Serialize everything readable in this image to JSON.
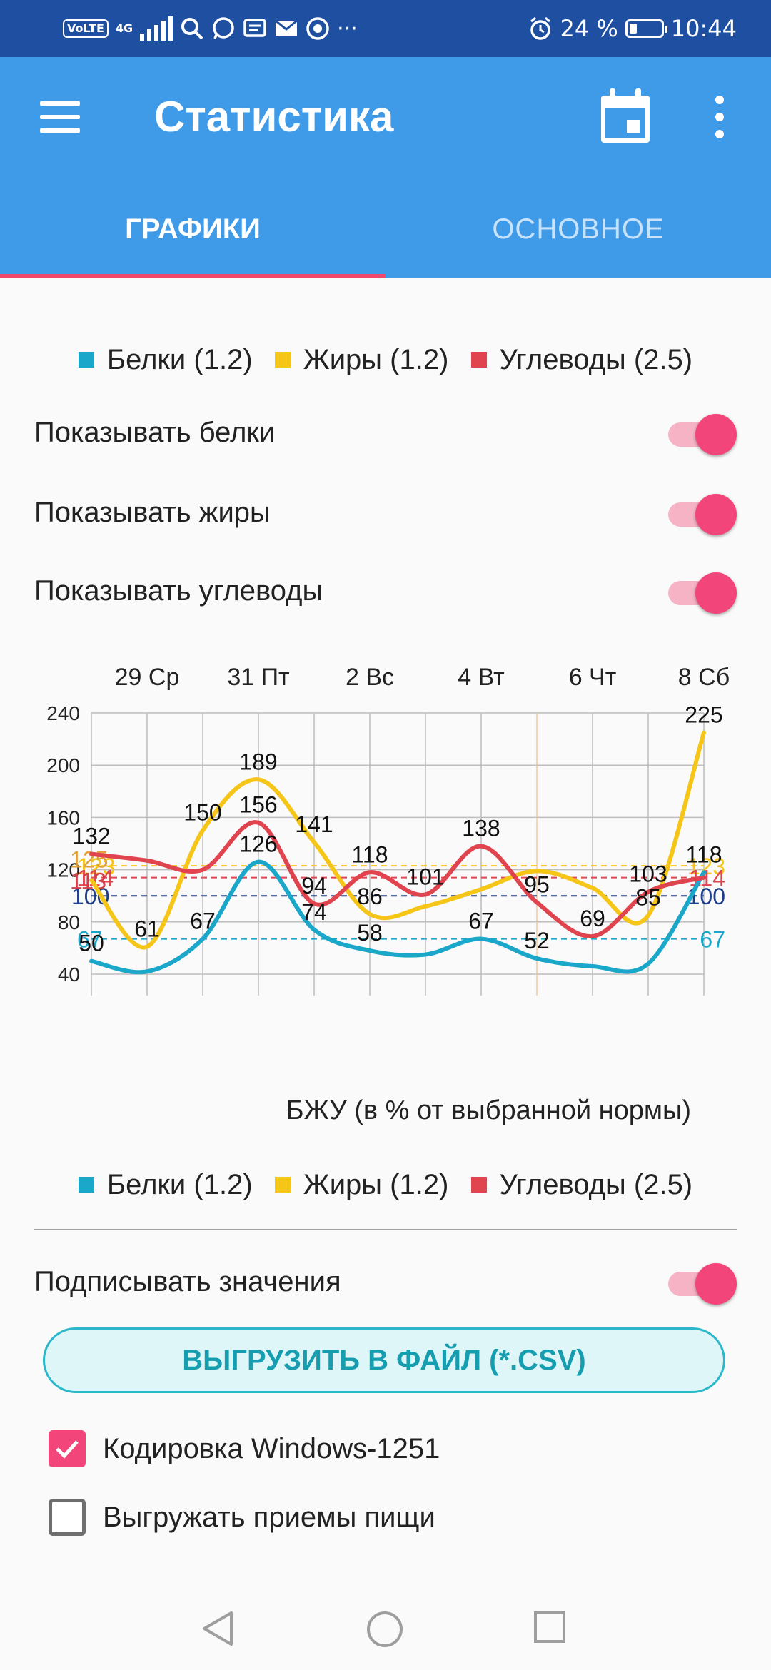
{
  "status_bar": {
    "volte": "VoLTE",
    "network": "4G",
    "dots": "···",
    "battery_percent": "24 %",
    "time": "10:44",
    "icons": [
      "signal-icon",
      "search-icon",
      "whatsapp-icon",
      "message-icon",
      "mail-icon",
      "chrome-icon",
      "alarm-icon",
      "battery-icon"
    ]
  },
  "app_bar": {
    "title": "Статистика",
    "tabs": [
      {
        "label": "ГРАФИКИ",
        "selected": true
      },
      {
        "label": "ОСНОВНОЕ",
        "selected": false
      }
    ]
  },
  "legend_top": [
    {
      "label": "Белки (1.2)",
      "color": "#1aa7c9"
    },
    {
      "label": "Жиры (1.2)",
      "color": "#f5c518"
    },
    {
      "label": "Углеводы (2.5)",
      "color": "#e0444e"
    }
  ],
  "toggles": [
    {
      "label": "Показывать белки",
      "on": true
    },
    {
      "label": "Показывать жиры",
      "on": true
    },
    {
      "label": "Показывать углеводы",
      "on": true
    }
  ],
  "chart_data": {
    "type": "line",
    "title": "",
    "caption": "БЖУ (в % от выбранной нормы)",
    "xlabel": "",
    "ylabel": "",
    "x_ticks": [
      "29 Ср",
      "31 Пт",
      "2 Вс",
      "4 Вт",
      "6 Чт",
      "8 Сб"
    ],
    "y_ticks": [
      40,
      80,
      120,
      160,
      200,
      240
    ],
    "ylim": [
      40,
      240
    ],
    "grid": true,
    "series": [
      {
        "name": "Белки (1.2)",
        "color": "#1aa7c9",
        "points": [
          [
            0,
            50
          ],
          [
            1,
            42
          ],
          [
            2,
            67
          ],
          [
            3,
            126
          ],
          [
            4,
            74
          ],
          [
            5,
            58
          ],
          [
            6,
            55
          ],
          [
            7,
            67
          ],
          [
            8,
            52
          ],
          [
            9,
            46
          ],
          [
            10,
            48
          ],
          [
            11,
            118
          ]
        ],
        "labels": [
          "50",
          "",
          "67",
          "126",
          "74",
          "58",
          "",
          "67",
          "52",
          "",
          "",
          "118"
        ],
        "norm": 67,
        "norm_label": "67"
      },
      {
        "name": "Жиры (1.2)",
        "color": "#f5c518",
        "points": [
          [
            0,
            112
          ],
          [
            1,
            61
          ],
          [
            2,
            150
          ],
          [
            3,
            189
          ],
          [
            4,
            141
          ],
          [
            5,
            86
          ],
          [
            6,
            92
          ],
          [
            7,
            105
          ],
          [
            8,
            119
          ],
          [
            9,
            106
          ],
          [
            10,
            85
          ],
          [
            11,
            225
          ]
        ],
        "labels": [
          "",
          "61",
          "150",
          "189",
          "141",
          "86",
          "",
          "",
          "",
          "",
          "85",
          "225"
        ],
        "norm": 123,
        "norm_label": "123"
      },
      {
        "name": "Углеводы (2.5)",
        "color": "#e0444e",
        "points": [
          [
            0,
            132
          ],
          [
            1,
            127
          ],
          [
            2,
            120
          ],
          [
            3,
            156
          ],
          [
            4,
            94
          ],
          [
            5,
            118
          ],
          [
            6,
            101
          ],
          [
            7,
            138
          ],
          [
            8,
            95
          ],
          [
            9,
            69
          ],
          [
            10,
            103
          ],
          [
            11,
            114
          ]
        ],
        "labels": [
          "132",
          "",
          "",
          "156",
          "94",
          "118",
          "101",
          "138",
          "95",
          "69",
          "103",
          ""
        ],
        "norm": 114,
        "norm_label": "114"
      }
    ],
    "reference_lines": [
      {
        "value": 100,
        "label": "100",
        "color": "#1f3f8a"
      }
    ],
    "extra_left_labels": [
      "125",
      "113"
    ]
  },
  "legend_bottom": [
    {
      "label": "Белки (1.2)",
      "color": "#1aa7c9"
    },
    {
      "label": "Жиры (1.2)",
      "color": "#f5c518"
    },
    {
      "label": "Углеводы (2.5)",
      "color": "#e0444e"
    }
  ],
  "sign_values": {
    "label": "Подписывать значения",
    "on": true
  },
  "export_button": "ВЫГРУЗИТЬ В ФАЙЛ (*.CSV)",
  "checkboxes": [
    {
      "label": "Кодировка Windows-1251",
      "checked": true
    },
    {
      "label": "Выгружать приемы пищи",
      "checked": false
    }
  ],
  "colors": {
    "accent": "#f2467a",
    "appbar": "#3f9ae8",
    "statusbar": "#1f4fa0"
  }
}
